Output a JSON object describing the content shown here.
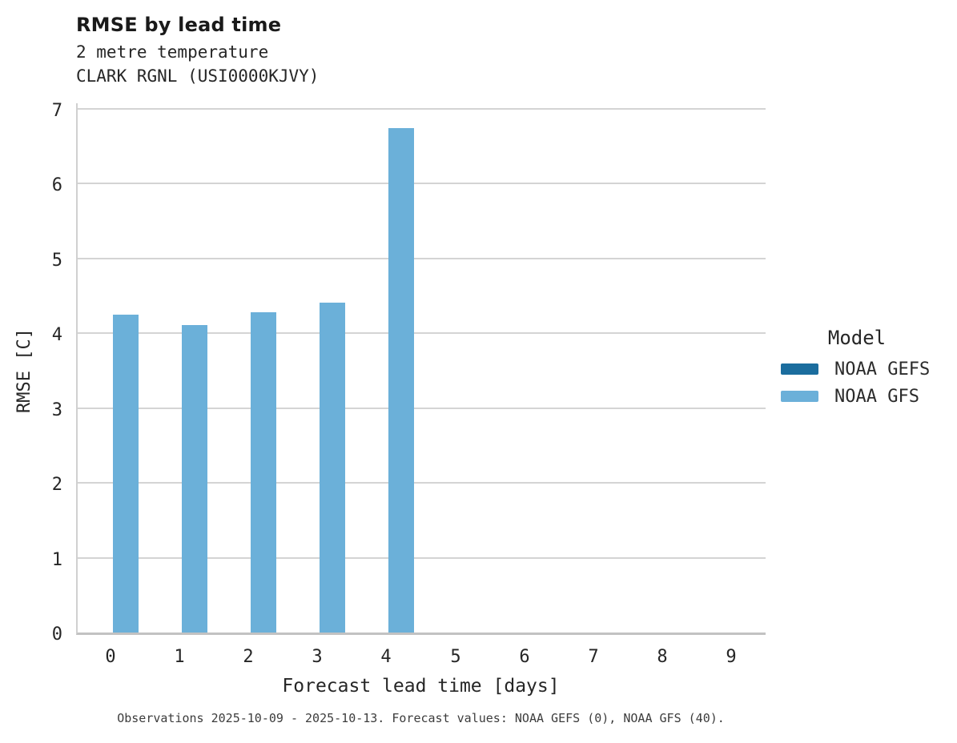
{
  "header": {
    "title": "RMSE by lead time",
    "subtitle_line1": "2 metre temperature",
    "subtitle_line2": "CLARK RGNL (USI0000KJVY)"
  },
  "chart_data": {
    "type": "bar",
    "title": "RMSE by lead time",
    "subtitle": "2 metre temperature",
    "station": "CLARK RGNL (USI0000KJVY)",
    "xlabel": "Forecast lead time [days]",
    "ylabel": "RMSE [C]",
    "categories": [
      "0",
      "1",
      "2",
      "3",
      "4",
      "5",
      "6",
      "7",
      "8",
      "9"
    ],
    "yticks": [
      0,
      1,
      2,
      3,
      4,
      5,
      6,
      7
    ],
    "ylim": [
      0,
      7.08
    ],
    "grid": "horizontal",
    "legend_title": "Model",
    "legend_position": "right",
    "series": [
      {
        "name": "NOAA GEFS",
        "color": "#1b6d9e",
        "values": [
          null,
          null,
          null,
          null,
          null,
          null,
          null,
          null,
          null,
          null
        ]
      },
      {
        "name": "NOAA GFS",
        "color": "#6bb0d9",
        "values": [
          4.25,
          4.11,
          4.28,
          4.41,
          6.74,
          null,
          null,
          null,
          null,
          null
        ]
      }
    ]
  },
  "footer": {
    "caption": "Observations 2025-10-09 - 2025-10-13. Forecast values: NOAA GEFS (0), NOAA GFS (40)."
  }
}
